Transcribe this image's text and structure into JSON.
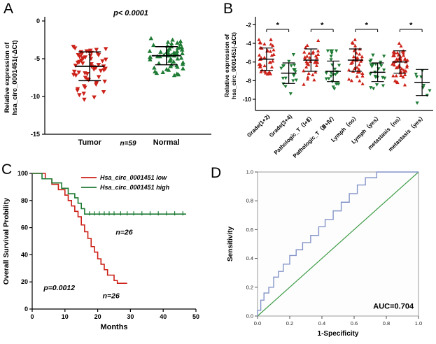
{
  "figure": {
    "panel_labels": [
      "A",
      "B",
      "C",
      "D"
    ],
    "background": "#ffffff",
    "colors": {
      "red": "#CC2118",
      "green": "#1E7B34",
      "roc_blue": "#8494C8",
      "diag_green": "#3E9C47",
      "axis": "#000000"
    }
  },
  "chart_data": [
    {
      "id": "A",
      "type": "scatter",
      "title": "p< 0.0001",
      "ylabel_lines": [
        "Relative expression of",
        "hsa_circ_0001451(-ΔCt)"
      ],
      "yticks": [
        0,
        -5,
        -10,
        -15
      ],
      "ylim": [
        0,
        -15
      ],
      "n_note": "n=59",
      "groups": [
        {
          "name": "Tumor",
          "color": "#CC2118",
          "marker": "down",
          "mean": -6.0,
          "sd": 1.9,
          "values": [
            -3.4,
            -3.6,
            -3.7,
            -3.8,
            -3.9,
            -4.0,
            -4.0,
            -4.1,
            -4.2,
            -4.3,
            -4.4,
            -4.5,
            -4.5,
            -4.6,
            -4.7,
            -4.8,
            -4.9,
            -5.0,
            -5.0,
            -5.1,
            -5.2,
            -5.3,
            -5.4,
            -5.5,
            -5.5,
            -5.6,
            -5.7,
            -5.8,
            -5.9,
            -6.0,
            -6.0,
            -6.1,
            -6.2,
            -6.3,
            -6.4,
            -6.5,
            -6.6,
            -6.7,
            -6.8,
            -6.9,
            -7.0,
            -7.1,
            -7.2,
            -7.4,
            -7.5,
            -7.7,
            -7.8,
            -8.0,
            -8.2,
            -8.4,
            -8.6,
            -8.8,
            -9.0,
            -9.2,
            -9.4,
            -9.6,
            -9.8,
            -10.1,
            -10.4
          ]
        },
        {
          "name": "Normal",
          "color": "#1E7B34",
          "marker": "up",
          "mean": -4.6,
          "sd": 1.2,
          "values": [
            -2.3,
            -2.5,
            -2.7,
            -2.8,
            -2.9,
            -3.0,
            -3.1,
            -3.2,
            -3.3,
            -3.4,
            -3.5,
            -3.5,
            -3.6,
            -3.7,
            -3.8,
            -3.8,
            -3.9,
            -4.0,
            -4.0,
            -4.1,
            -4.1,
            -4.2,
            -4.2,
            -4.3,
            -4.3,
            -4.4,
            -4.4,
            -4.5,
            -4.5,
            -4.6,
            -4.6,
            -4.7,
            -4.7,
            -4.8,
            -4.8,
            -4.9,
            -5.0,
            -5.0,
            -5.1,
            -5.2,
            -5.3,
            -5.4,
            -5.5,
            -5.6,
            -5.7,
            -5.8,
            -5.9,
            -6.0,
            -6.1,
            -6.2,
            -6.3,
            -6.4,
            -6.5,
            -6.7,
            -6.8,
            -6.9,
            -7.0,
            -7.1,
            -7.2
          ]
        }
      ]
    },
    {
      "id": "B",
      "type": "scatter",
      "ylabel_lines": [
        "Relative expression of",
        "hsa_circ_0001451(-ΔCt)"
      ],
      "yticks": [
        -2,
        -4,
        -6,
        -8,
        -10
      ],
      "ylim": [
        -1.6,
        -11.2
      ],
      "groups": [
        {
          "name": "Grade(1+2)",
          "color": "#CC2118",
          "marker": "up",
          "n": 40,
          "mean": -5.7,
          "sd": 1.2,
          "min": -8.6,
          "max": -3.6
        },
        {
          "name": "Grade(3+4)",
          "color": "#1E7B34",
          "marker": "down",
          "n": 19,
          "mean": -7.2,
          "sd": 1.1,
          "min": -9.4,
          "max": -5.2
        },
        {
          "name": "Pathologic_T（Ⅰ+Ⅱ）",
          "color": "#CC2118",
          "marker": "up",
          "n": 34,
          "mean": -5.8,
          "sd": 1.2,
          "min": -8.4,
          "max": -3.7
        },
        {
          "name": "Pathologic_T（Ⅲ+Ⅳ）",
          "color": "#1E7B34",
          "marker": "down",
          "n": 25,
          "mean": -7.0,
          "sd": 1.1,
          "min": -9.2,
          "max": -4.8
        },
        {
          "name": "Lymph（no）",
          "color": "#CC2118",
          "marker": "up",
          "n": 34,
          "mean": -5.8,
          "sd": 1.2,
          "min": -8.5,
          "max": -3.6
        },
        {
          "name": "Lymph（yes）",
          "color": "#1E7B34",
          "marker": "down",
          "n": 25,
          "mean": -7.1,
          "sd": 1.0,
          "min": -9.3,
          "max": -5.0
        },
        {
          "name": "metastasis（no）",
          "color": "#CC2118",
          "marker": "up",
          "n": 50,
          "mean": -6.0,
          "sd": 1.2,
          "min": -9.0,
          "max": -3.6
        },
        {
          "name": "metastasis（yes）",
          "color": "#1E7B34",
          "marker": "down",
          "n": 9,
          "mean": -8.2,
          "sd": 1.4,
          "min": -10.4,
          "max": -6.0
        }
      ],
      "significance": [
        {
          "groups": [
            0,
            1
          ],
          "label": "*"
        },
        {
          "groups": [
            2,
            3
          ],
          "label": "*"
        },
        {
          "groups": [
            4,
            5
          ],
          "label": "*"
        },
        {
          "groups": [
            6,
            7
          ],
          "label": "*"
        }
      ]
    },
    {
      "id": "C",
      "type": "line",
      "subtype": "kaplan-meier",
      "xlabel": "Months",
      "ylabel": "Overall Survival Probility",
      "xticks": [
        0,
        10,
        20,
        30,
        40,
        50
      ],
      "yticks": [
        0,
        20,
        40,
        60,
        80,
        100
      ],
      "xlim": [
        0,
        50
      ],
      "ylim": [
        0,
        100
      ],
      "p_label": "p=0.0012",
      "p_label_pos": [
        3.5,
        14
      ],
      "series": [
        {
          "name": "Hsa_circ_0001451 low",
          "color": "#CC2118",
          "n_label": "n=26",
          "n_label_pos": [
            21.5,
            8
          ],
          "steps": [
            [
              0,
              100
            ],
            [
              4,
              100
            ],
            [
              4,
              96
            ],
            [
              6,
              96
            ],
            [
              6,
              92
            ],
            [
              8,
              92
            ],
            [
              8,
              88
            ],
            [
              10,
              88
            ],
            [
              10,
              84
            ],
            [
              11,
              84
            ],
            [
              11,
              80
            ],
            [
              12,
              80
            ],
            [
              12,
              76
            ],
            [
              13,
              76
            ],
            [
              13,
              72
            ],
            [
              14,
              72
            ],
            [
              14,
              68
            ],
            [
              15,
              68
            ],
            [
              15,
              62
            ],
            [
              16,
              62
            ],
            [
              16,
              57
            ],
            [
              17,
              57
            ],
            [
              17,
              52
            ],
            [
              18,
              52
            ],
            [
              18,
              46
            ],
            [
              19,
              46
            ],
            [
              19,
              42
            ],
            [
              20,
              42
            ],
            [
              20,
              37
            ],
            [
              21,
              37
            ],
            [
              21,
              33
            ],
            [
              22,
              33
            ],
            [
              22,
              29
            ],
            [
              23,
              29
            ],
            [
              23,
              25
            ],
            [
              25,
              25
            ],
            [
              25,
              21
            ],
            [
              26,
              21
            ],
            [
              26,
              19
            ],
            [
              29,
              19
            ]
          ]
        },
        {
          "name": "Hsa_circ_0001451 high",
          "color": "#1E7B34",
          "n_label": "n=26",
          "n_label_pos": [
            25.5,
            55
          ],
          "steps": [
            [
              0,
              100
            ],
            [
              3,
              100
            ],
            [
              3,
              96
            ],
            [
              6,
              96
            ],
            [
              6,
              93
            ],
            [
              9,
              93
            ],
            [
              9,
              89
            ],
            [
              11,
              89
            ],
            [
              11,
              85
            ],
            [
              13,
              85
            ],
            [
              13,
              82
            ],
            [
              14,
              82
            ],
            [
              14,
              78
            ],
            [
              15,
              78
            ],
            [
              15,
              74
            ],
            [
              16,
              74
            ],
            [
              16,
              70
            ],
            [
              47,
              70
            ]
          ],
          "censors": [
            [
              17.5,
              70
            ],
            [
              19,
              70
            ],
            [
              20.5,
              70
            ],
            [
              22,
              70
            ],
            [
              23.5,
              70
            ],
            [
              25,
              70
            ],
            [
              27,
              70
            ],
            [
              29,
              70
            ],
            [
              31,
              70
            ],
            [
              33.5,
              70
            ],
            [
              36,
              70
            ],
            [
              38.5,
              70
            ],
            [
              41,
              70
            ],
            [
              43.5,
              70
            ],
            [
              46,
              70
            ]
          ]
        }
      ]
    },
    {
      "id": "D",
      "type": "line",
      "subtype": "roc",
      "xlabel": "1-Specificity",
      "ylabel": "Sensitivity",
      "ticks": [
        0,
        0.2,
        0.4,
        0.6,
        0.8,
        1
      ],
      "xlim": [
        0,
        1
      ],
      "ylim": [
        0,
        1
      ],
      "annotation": "AUC=0.704",
      "curve_color": "#8494C8",
      "diagonal_color": "#3E9C47",
      "diagonal": [
        [
          0,
          0
        ],
        [
          1,
          1
        ]
      ],
      "roc": [
        [
          0,
          0
        ],
        [
          0,
          0.04
        ],
        [
          0.02,
          0.04
        ],
        [
          0.02,
          0.11
        ],
        [
          0.04,
          0.11
        ],
        [
          0.04,
          0.16
        ],
        [
          0.07,
          0.16
        ],
        [
          0.07,
          0.2
        ],
        [
          0.1,
          0.2
        ],
        [
          0.1,
          0.27
        ],
        [
          0.13,
          0.27
        ],
        [
          0.13,
          0.31
        ],
        [
          0.16,
          0.31
        ],
        [
          0.16,
          0.36
        ],
        [
          0.2,
          0.36
        ],
        [
          0.2,
          0.42
        ],
        [
          0.24,
          0.42
        ],
        [
          0.24,
          0.46
        ],
        [
          0.28,
          0.46
        ],
        [
          0.28,
          0.51
        ],
        [
          0.33,
          0.51
        ],
        [
          0.33,
          0.56
        ],
        [
          0.38,
          0.56
        ],
        [
          0.38,
          0.62
        ],
        [
          0.42,
          0.62
        ],
        [
          0.42,
          0.67
        ],
        [
          0.47,
          0.67
        ],
        [
          0.47,
          0.73
        ],
        [
          0.52,
          0.73
        ],
        [
          0.52,
          0.79
        ],
        [
          0.57,
          0.79
        ],
        [
          0.57,
          0.85
        ],
        [
          0.62,
          0.85
        ],
        [
          0.62,
          0.91
        ],
        [
          0.67,
          0.91
        ],
        [
          0.67,
          0.96
        ],
        [
          0.74,
          0.96
        ],
        [
          0.74,
          1
        ],
        [
          1,
          1
        ]
      ]
    }
  ]
}
